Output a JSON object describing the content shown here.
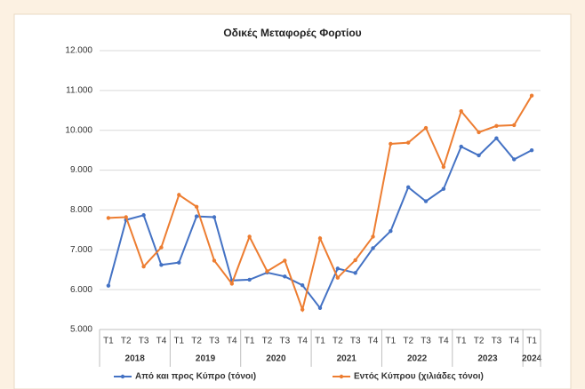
{
  "chart_data": {
    "type": "line",
    "title": "Οδικές Μεταφορές Φορτίου",
    "categories": [
      "T1",
      "T2",
      "T3",
      "T4",
      "T1",
      "T2",
      "T3",
      "T4",
      "T1",
      "T2",
      "T3",
      "T4",
      "T1",
      "T2",
      "T3",
      "T4",
      "T1",
      "T2",
      "T3",
      "T4",
      "T1",
      "T2",
      "T3",
      "T4",
      "T1"
    ],
    "groups": [
      {
        "name": "2018",
        "count": 4
      },
      {
        "name": "2019",
        "count": 4
      },
      {
        "name": "2020",
        "count": 4
      },
      {
        "name": "2021",
        "count": 4
      },
      {
        "name": "2022",
        "count": 4
      },
      {
        "name": "2023",
        "count": 4
      },
      {
        "name": "2024",
        "count": 1
      }
    ],
    "series": [
      {
        "name": "Από και προς Κύπρο (τόνοι)",
        "color": "#4472c4",
        "values": [
          6100,
          7750,
          7870,
          6620,
          6680,
          7840,
          7820,
          6230,
          6250,
          6430,
          6330,
          6110,
          5540,
          6530,
          6420,
          7040,
          7470,
          8570,
          8220,
          8530,
          9590,
          9370,
          9800,
          9270,
          9500
        ]
      },
      {
        "name": "Εντός Κύπρου (χιλιάδες τόνοι)",
        "color": "#ed7d31",
        "values": [
          7800,
          7820,
          6580,
          7060,
          8380,
          8080,
          6730,
          6150,
          7330,
          6460,
          6730,
          5500,
          7290,
          6300,
          6740,
          7330,
          9660,
          9690,
          10060,
          9080,
          10480,
          9950,
          10110,
          10130,
          10870
        ]
      }
    ],
    "ylim": [
      5000,
      12000
    ],
    "yticks": [
      {
        "value": 5000,
        "label": "5.000"
      },
      {
        "value": 6000,
        "label": "6.000"
      },
      {
        "value": 7000,
        "label": "7.000"
      },
      {
        "value": 8000,
        "label": "8.000"
      },
      {
        "value": 9000,
        "label": "9.000"
      },
      {
        "value": 10000,
        "label": "10.000"
      },
      {
        "value": 11000,
        "label": "11.000"
      },
      {
        "value": 12000,
        "label": "12.000"
      }
    ],
    "grid": true
  }
}
